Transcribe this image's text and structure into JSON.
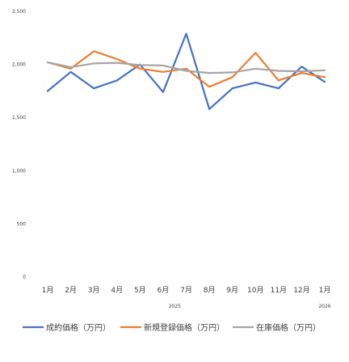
{
  "chart_data": {
    "type": "line",
    "categories": [
      "1月",
      "2月",
      "3月",
      "4月",
      "5月",
      "6月",
      "7月",
      "8月",
      "9月",
      "10月",
      "11月",
      "12月",
      "1月"
    ],
    "year_labels": [
      {
        "label": "2025",
        "at_index": 5.5
      },
      {
        "label": "2026",
        "at_index": 12
      }
    ],
    "ylim": [
      0,
      2500
    ],
    "yticks": [
      0,
      500,
      1000,
      1500,
      2000,
      2500
    ],
    "ytick_labels": [
      "0",
      "500",
      "1,000",
      "1,500",
      "2,000",
      "2,500"
    ],
    "grid": false,
    "legend_position": "bottom",
    "series": [
      {
        "name": "成約価格（万円）",
        "color": "#4472C4",
        "values": [
          1750,
          1930,
          1775,
          1850,
          2000,
          1740,
          2290,
          1580,
          1775,
          1830,
          1775,
          1980,
          1835
        ]
      },
      {
        "name": "新規登録価格（万円）",
        "color": "#ED7D31",
        "values": [
          2020,
          1960,
          2125,
          2050,
          1960,
          1930,
          1960,
          1790,
          1880,
          2110,
          1850,
          1920,
          1880
        ]
      },
      {
        "name": "在庫価格（万円）",
        "color": "#A5A5A5",
        "values": [
          2020,
          1975,
          2010,
          2015,
          1995,
          1990,
          1940,
          1920,
          1925,
          1960,
          1940,
          1935,
          1945
        ]
      }
    ]
  }
}
